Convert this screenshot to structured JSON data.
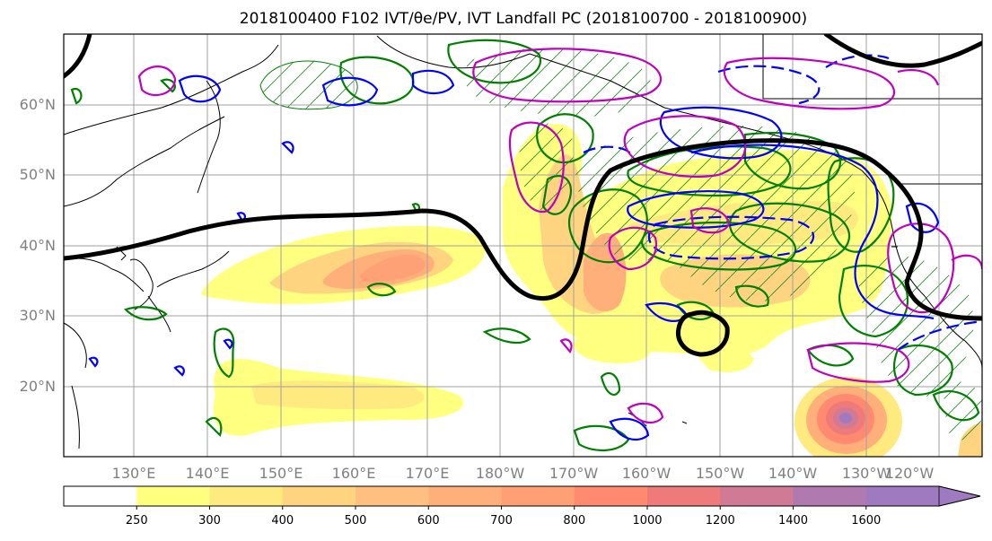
{
  "title": "2018100400 F102 IVT/θe/PV, IVT Landfall PC (2018100700 - 2018100900)",
  "map": {
    "lat_labels": [
      "60°N",
      "50°N",
      "40°N",
      "30°N",
      "20°N"
    ],
    "lon_labels": [
      "130°E",
      "140°E",
      "150°E",
      "160°E",
      "170°E",
      "180°W",
      "170°W",
      "160°W",
      "150°W",
      "140°W",
      "130°W",
      "120°W"
    ],
    "extent": {
      "lon_min": 120,
      "lon_max": 250,
      "lat_min": 10,
      "lat_max": 70
    },
    "colors": {
      "ocean": "#ffffff",
      "coastline": "#000000",
      "grid": "#a0a0a0",
      "jet_contour": "#000000",
      "green_contour": "#008000",
      "blue_contour": "#0000ff",
      "magenta_contour": "#bf00bf"
    }
  },
  "colorbar": {
    "levels": [
      "250",
      "300",
      "400",
      "500",
      "600",
      "700",
      "800",
      "1000",
      "1200",
      "1400",
      "1600"
    ],
    "colors": [
      "#ffffff",
      "#ffff80",
      "#ffea80",
      "#ffd480",
      "#ffbf80",
      "#ffb07a",
      "#ff9f75",
      "#ff8a70",
      "#ee7a7a",
      "#d07a95",
      "#b07ab0",
      "#a07ac0"
    ]
  }
}
